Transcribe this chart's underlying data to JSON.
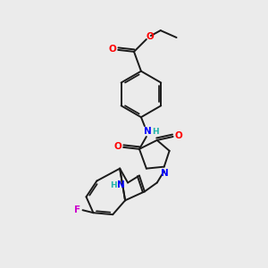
{
  "bg_color": "#ebebeb",
  "bond_color": "#1a1a1a",
  "atom_colors": {
    "O": "#ff0000",
    "N": "#0000ff",
    "F": "#cc00cc",
    "H_color": "#20b2aa",
    "C": "#1a1a1a"
  },
  "figsize": [
    3.0,
    3.0
  ],
  "dpi": 100,
  "lw": 1.4,
  "fs": 7.5
}
